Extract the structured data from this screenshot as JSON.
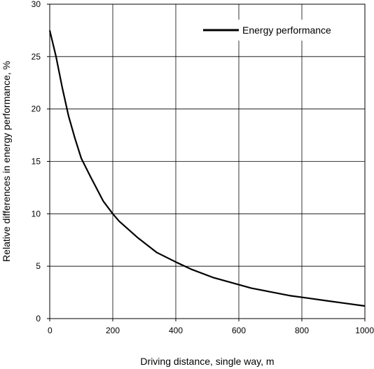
{
  "chart_data": {
    "type": "line",
    "title": "",
    "xlabel": "Driving distance, single way, m",
    "ylabel": "Relative differences in energy performance, %",
    "xlim": [
      0,
      1000
    ],
    "ylim": [
      0,
      30
    ],
    "x_ticks": [
      "0",
      "200",
      "400",
      "600",
      "800",
      "1000"
    ],
    "y_ticks": [
      "0",
      "5",
      "10",
      "15",
      "20",
      "25",
      "30"
    ],
    "grid": true,
    "legend_position": "top-right",
    "series": [
      {
        "name": "Energy performance",
        "color": "#000000",
        "x": [
          0,
          20,
          40,
          60,
          80,
          100,
          130,
          170,
          200,
          220,
          280,
          340,
          400,
          450,
          520,
          580,
          640,
          700,
          760,
          820,
          880,
          940,
          1000
        ],
        "y": [
          27.5,
          25.0,
          22.0,
          19.3,
          17.2,
          15.3,
          13.5,
          11.2,
          10.0,
          9.3,
          7.7,
          6.3,
          5.4,
          4.7,
          3.9,
          3.4,
          2.9,
          2.55,
          2.2,
          1.95,
          1.7,
          1.45,
          1.2
        ]
      }
    ]
  }
}
